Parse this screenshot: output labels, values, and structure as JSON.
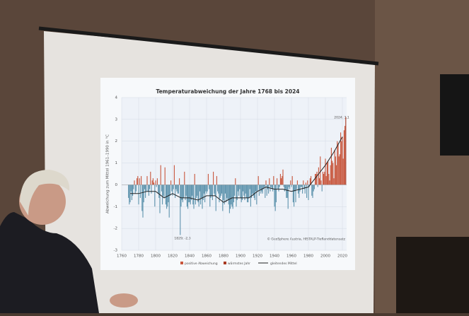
{
  "chart_data": {
    "type": "bar",
    "title": "Temperaturabweichung der Jahre 1768 bis 2024",
    "y_label": "Abweichung zum Mittel 1961–1990 in °C",
    "source": "© GeoSphere Austria, HISTALP-Tieflanddatensatz",
    "annotations": [
      "2024; 3,1",
      "1829; -2,3"
    ],
    "x_start": 1768,
    "xlim": [
      1760,
      2025
    ],
    "xticks": [
      1760,
      1780,
      1800,
      1820,
      1840,
      1860,
      1880,
      1900,
      1920,
      1940,
      1960,
      1980,
      2000,
      2020
    ],
    "ylim": [
      -3,
      4
    ],
    "yticks": [
      -3,
      -2,
      -1,
      0,
      1,
      2,
      3,
      4
    ],
    "grid": true,
    "series": [
      {
        "name": "positive Abweichung",
        "color": "#c8563c",
        "negative_color": "#5e93ad",
        "values": [
          -0.6,
          -0.9,
          -0.8,
          -0.3,
          -0.7,
          -0.5,
          -0.2,
          0.2,
          -0.4,
          -0.3,
          0.3,
          0.4,
          -0.9,
          0.3,
          -0.6,
          0.4,
          -1.2,
          -1.5,
          -0.8,
          -0.2,
          -0.6,
          -0.3,
          0.4,
          -0.3,
          -0.5,
          -0.2,
          0.6,
          -0.4,
          0.2,
          0.3,
          0.1,
          -1.0,
          0.2,
          -0.1,
          0.3,
          -0.4,
          -0.6,
          -1.3,
          0.9,
          -0.3,
          -0.9,
          -0.5,
          -0.6,
          0.8,
          -0.9,
          -1.1,
          -1.0,
          -0.8,
          -1.5,
          -0.5,
          0.2,
          -0.3,
          -0.5,
          -0.2,
          0.9,
          -0.6,
          -0.2,
          -0.3,
          -0.4,
          -0.4,
          0.3,
          -2.3,
          -1.0,
          -0.7,
          -0.8,
          -0.6,
          0.6,
          -0.7,
          -0.5,
          -1.0,
          -1.1,
          -0.8,
          -0.8,
          -0.9,
          -0.7,
          -0.5,
          -0.9,
          -1.1,
          0.5,
          -0.9,
          -0.6,
          -0.5,
          -0.8,
          -1.0,
          -0.3,
          -0.9,
          -0.6,
          -1.1,
          -0.7,
          -0.4,
          -0.8,
          -0.3,
          -0.4,
          -0.3,
          0.5,
          -0.2,
          -1.0,
          -0.6,
          -0.5,
          -0.7,
          0.6,
          -0.4,
          -0.5,
          -1.2,
          0.4,
          -0.3,
          -0.4,
          -0.8,
          -0.6,
          -0.5,
          -0.4,
          -1.2,
          -0.7,
          -0.9,
          -0.4,
          -0.8,
          -0.6,
          -0.7,
          -0.9,
          -1.3,
          -1.1,
          -0.9,
          -1.0,
          -1.1,
          -0.8,
          -0.5,
          0.3,
          -1.0,
          -0.7,
          -0.3,
          -0.5,
          -0.2,
          -0.6,
          -0.8,
          -0.7,
          -0.3,
          -0.5,
          -0.7,
          -0.4,
          -0.6,
          -0.8,
          -0.8,
          -0.6,
          -0.2,
          -1.0,
          -0.6,
          -0.4,
          -0.5,
          -0.6,
          -0.7,
          -0.3,
          -0.9,
          -0.3,
          0.4,
          -0.5,
          -0.2,
          -0.4,
          -0.3,
          -0.4,
          -0.2,
          -0.1,
          -0.6,
          0.2,
          -0.5,
          -0.2,
          -0.4,
          0.3,
          -0.3,
          -0.1,
          -0.2,
          -0.3,
          0.4,
          -1.0,
          -1.2,
          -0.8,
          0.3,
          -0.2,
          -0.3,
          -0.1,
          0.5,
          0.3,
          0.4,
          0.7,
          -0.1,
          -0.3,
          -0.2,
          -0.6,
          -0.6,
          -1.1,
          -0.1,
          -0.2,
          0.2,
          -0.1,
          0.4,
          -0.8,
          -1.0,
          -0.3,
          -0.8,
          -0.2,
          0.2,
          -0.4,
          -0.6,
          -0.3,
          -0.1,
          -0.1,
          -0.4,
          0.2,
          -0.2,
          -0.4,
          0.1,
          -0.6,
          0.2,
          -0.7,
          -0.1,
          0.3,
          0.4,
          -0.5,
          -0.6,
          -0.3,
          -0.2,
          0.5,
          0.5,
          0.6,
          -0.1,
          0.8,
          0.3,
          1.3,
          0.2,
          -0.3,
          0.6,
          0.5,
          0.6,
          1.2,
          0.4,
          1.0,
          1.1,
          0.5,
          0.2,
          0.9,
          1.7,
          1.1,
          1.0,
          0.3,
          1.6,
          1.3,
          0.9,
          2.0,
          1.9,
          1.3,
          1.4,
          2.4,
          2.0,
          2.2,
          1.2,
          2.5,
          2.7,
          3.1
        ]
      },
      {
        "name": "wärmstes Jahr",
        "color": "#a83a22"
      }
    ],
    "smooth": {
      "name": "gleitendes Mittel",
      "color": "#222222",
      "x": [
        1770,
        1780,
        1790,
        1800,
        1810,
        1820,
        1830,
        1840,
        1850,
        1860,
        1870,
        1880,
        1890,
        1900,
        1910,
        1920,
        1930,
        1940,
        1950,
        1960,
        1970,
        1980,
        1990,
        2000,
        2010,
        2020
      ],
      "values": [
        -0.4,
        -0.4,
        -0.3,
        -0.3,
        -0.6,
        -0.4,
        -0.6,
        -0.6,
        -0.7,
        -0.5,
        -0.5,
        -0.8,
        -0.6,
        -0.6,
        -0.6,
        -0.3,
        -0.1,
        -0.2,
        -0.2,
        -0.3,
        -0.2,
        -0.1,
        0.4,
        0.9,
        1.5,
        2.2
      ]
    }
  }
}
